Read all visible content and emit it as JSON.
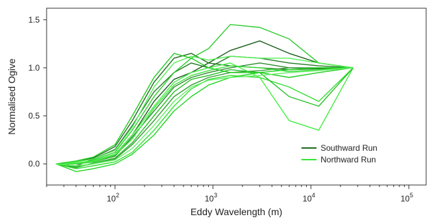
{
  "chart_data": {
    "type": "line",
    "xlabel": "Eddy Wavelength (m)",
    "ylabel": "Normalised Ogive",
    "x_scale": "log",
    "xlim": [
      20,
      150000
    ],
    "ylim": [
      -0.22,
      1.62
    ],
    "grid": false,
    "legend_position": "bottom-right",
    "x_ticks": [
      {
        "value": 100,
        "base": "10",
        "exp": "2"
      },
      {
        "value": 1000,
        "base": "10",
        "exp": "3"
      },
      {
        "value": 10000,
        "base": "10",
        "exp": "4"
      },
      {
        "value": 100000,
        "base": "10",
        "exp": "5"
      }
    ],
    "y_ticks": [
      {
        "value": 0,
        "label": "0.0"
      },
      {
        "value": 0.5,
        "label": "0.5"
      },
      {
        "value": 1.0,
        "label": "1.0"
      },
      {
        "value": 1.5,
        "label": "1.5"
      }
    ],
    "legend": [
      {
        "label": "Southward Run",
        "color": "#1f6b1f"
      },
      {
        "label": "Northward Run",
        "color": "#33e633"
      }
    ],
    "series": [
      {
        "group": "Southward Run",
        "color": "#1a5c1a",
        "x": [
          25,
          40,
          60,
          100,
          150,
          250,
          400,
          600,
          900,
          1500,
          3000,
          6000,
          12000,
          27000
        ],
        "y": [
          0.0,
          0.01,
          0.03,
          0.1,
          0.3,
          0.65,
          0.88,
          0.95,
          1.05,
          1.18,
          1.28,
          1.15,
          1.05,
          1.0
        ]
      },
      {
        "group": "Southward Run",
        "color": "#237a23",
        "x": [
          25,
          40,
          60,
          100,
          150,
          250,
          400,
          600,
          900,
          1500,
          3000,
          6000,
          12000,
          27000
        ],
        "y": [
          0.0,
          -0.02,
          0.05,
          0.15,
          0.4,
          0.75,
          0.95,
          1.05,
          1.0,
          1.12,
          1.1,
          1.05,
          1.02,
          1.0
        ]
      },
      {
        "group": "Southward Run",
        "color": "#2e8b2e",
        "x": [
          25,
          40,
          60,
          100,
          150,
          250,
          400,
          600,
          900,
          1500,
          3000,
          6000,
          12000,
          27000
        ],
        "y": [
          0.0,
          0.0,
          0.02,
          0.08,
          0.28,
          0.55,
          0.8,
          0.9,
          0.95,
          1.0,
          1.05,
          1.0,
          0.99,
          1.0
        ]
      },
      {
        "group": "Southward Run",
        "color": "#1f6f1f",
        "x": [
          25,
          40,
          60,
          100,
          150,
          250,
          400,
          600,
          900,
          1500,
          3000,
          6000,
          12000,
          27000
        ],
        "y": [
          0.0,
          0.02,
          0.06,
          0.18,
          0.45,
          0.85,
          1.1,
          1.15,
          1.05,
          1.02,
          1.0,
          0.98,
          0.99,
          1.0
        ]
      },
      {
        "group": "Southward Run",
        "color": "#3a9a3a",
        "x": [
          25,
          40,
          60,
          100,
          150,
          250,
          400,
          600,
          900,
          1500,
          3000,
          6000,
          12000,
          27000
        ],
        "y": [
          0.0,
          -0.03,
          0.0,
          0.05,
          0.2,
          0.45,
          0.7,
          0.82,
          0.9,
          0.95,
          0.97,
          1.0,
          1.0,
          1.0
        ]
      },
      {
        "group": "Northward Run",
        "color": "#33dd33",
        "x": [
          25,
          40,
          60,
          100,
          150,
          250,
          400,
          600,
          900,
          1500,
          3000,
          6000,
          12000,
          27000
        ],
        "y": [
          0.0,
          -0.05,
          -0.02,
          0.02,
          0.12,
          0.35,
          0.6,
          0.78,
          0.88,
          0.92,
          0.9,
          0.8,
          0.65,
          1.0
        ]
      },
      {
        "group": "Northward Run",
        "color": "#2fcc2f",
        "x": [
          25,
          40,
          60,
          100,
          150,
          250,
          400,
          600,
          900,
          1500,
          3000,
          6000,
          12000,
          27000
        ],
        "y": [
          0.0,
          0.0,
          0.04,
          0.12,
          0.35,
          0.7,
          0.95,
          1.1,
          1.2,
          1.45,
          1.42,
          1.3,
          1.05,
          1.0
        ]
      },
      {
        "group": "Northward Run",
        "color": "#44ee44",
        "x": [
          25,
          40,
          60,
          100,
          150,
          250,
          400,
          600,
          900,
          1500,
          3000,
          6000,
          12000,
          27000
        ],
        "y": [
          0.0,
          0.01,
          0.03,
          0.1,
          0.3,
          0.6,
          0.85,
          0.95,
          1.0,
          1.05,
          0.9,
          0.45,
          0.35,
          1.0
        ]
      },
      {
        "group": "Northward Run",
        "color": "#28c028",
        "x": [
          25,
          40,
          60,
          100,
          150,
          250,
          400,
          600,
          900,
          1500,
          3000,
          6000,
          12000,
          27000
        ],
        "y": [
          0.0,
          -0.04,
          0.01,
          0.06,
          0.22,
          0.5,
          0.75,
          0.88,
          0.92,
          0.98,
          0.95,
          0.7,
          0.6,
          1.0
        ]
      },
      {
        "group": "Northward Run",
        "color": "#55f055",
        "x": [
          25,
          40,
          60,
          100,
          150,
          250,
          400,
          600,
          900,
          1500,
          3000,
          6000,
          12000,
          27000
        ],
        "y": [
          0.0,
          0.02,
          0.05,
          0.14,
          0.38,
          0.8,
          1.05,
          1.12,
          1.08,
          1.12,
          1.1,
          1.1,
          1.05,
          1.0
        ]
      },
      {
        "group": "Northward Run",
        "color": "#1fd61f",
        "x": [
          25,
          40,
          60,
          100,
          150,
          250,
          400,
          600,
          900,
          1500,
          3000,
          6000,
          12000,
          27000
        ],
        "y": [
          0.0,
          -0.08,
          -0.05,
          0.0,
          0.1,
          0.3,
          0.55,
          0.7,
          0.82,
          0.9,
          0.95,
          0.98,
          1.0,
          1.0
        ]
      },
      {
        "group": "Northward Run",
        "color": "#3ce03c",
        "x": [
          25,
          40,
          60,
          100,
          150,
          250,
          400,
          600,
          900,
          1500,
          3000,
          6000,
          12000,
          27000
        ],
        "y": [
          0.0,
          0.0,
          0.02,
          0.09,
          0.26,
          0.58,
          0.82,
          0.92,
          0.97,
          1.02,
          1.0,
          0.96,
          0.98,
          1.0
        ]
      },
      {
        "group": "Northward Run",
        "color": "#22cc22",
        "x": [
          25,
          40,
          60,
          100,
          150,
          250,
          400,
          600,
          900,
          1500,
          3000,
          6000,
          12000,
          27000
        ],
        "y": [
          0.0,
          0.03,
          0.07,
          0.2,
          0.5,
          0.9,
          1.15,
          1.1,
          1.0,
          0.95,
          0.95,
          0.9,
          0.95,
          1.0
        ]
      },
      {
        "group": "Northward Run",
        "color": "#66ee66",
        "x": [
          25,
          40,
          60,
          100,
          150,
          250,
          400,
          600,
          900,
          1500,
          3000,
          6000,
          12000,
          27000
        ],
        "y": [
          0.0,
          -0.02,
          0.0,
          0.04,
          0.16,
          0.4,
          0.65,
          0.8,
          0.87,
          0.9,
          0.92,
          0.95,
          0.97,
          1.0
        ]
      }
    ]
  }
}
